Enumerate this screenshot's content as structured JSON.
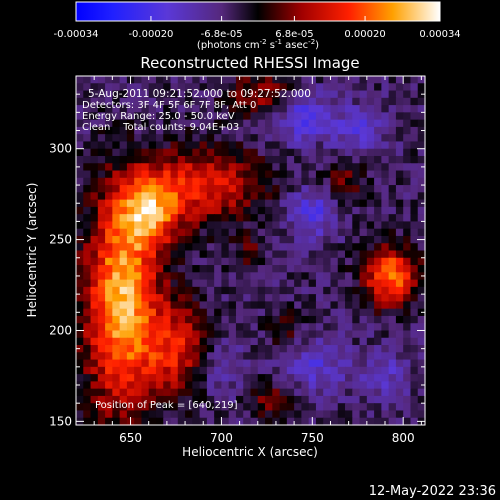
{
  "colorbar": {
    "tick_labels": [
      "-0.00034",
      "-0.00020",
      "-6.8e-05",
      "6.8e-05",
      "0.00020",
      "0.00034"
    ],
    "tick_values": [
      -0.00034,
      -0.0002,
      -6.8e-05,
      6.8e-05,
      0.0002,
      0.00034
    ],
    "range": [
      -0.00034,
      0.00034
    ],
    "units_prefix": "(photons cm",
    "units_exp1": "-2",
    "units_mid": " s",
    "units_exp2": "-1",
    "units_mid2": " asec",
    "units_exp3": "-2",
    "units_suffix": ")"
  },
  "chart_data": {
    "type": "heatmap",
    "title": "Reconstructed RHESSI Image",
    "xlabel": "Heliocentric X (arcsec)",
    "ylabel": "Heliocentric Y (arcsec)",
    "xlim": [
      620,
      812
    ],
    "ylim": [
      148,
      340
    ],
    "x_ticks": [
      650,
      700,
      750,
      800
    ],
    "y_ticks": [
      150,
      200,
      250,
      300
    ],
    "annotations": {
      "time_range": "5-Aug-2011 09:21:52.000 to 09:27:52.000",
      "detectors": "Detectors: 3F 4F 5F 6F 7F 8F, Att 0",
      "energy_range": "Energy Range: 25.0 - 50.0 keV",
      "clean": "Clean    Total counts: 9.04E+03",
      "peak": "Position of Peak = [640,219]"
    },
    "peak_position": [
      640,
      219
    ],
    "sources": [
      {
        "x": 645,
        "y": 215,
        "amp": 0.00033,
        "sx": 14,
        "sy": 40
      },
      {
        "x": 660,
        "y": 265,
        "amp": 0.00024,
        "sx": 12,
        "sy": 14
      },
      {
        "x": 690,
        "y": 280,
        "amp": 0.0002,
        "sx": 22,
        "sy": 14
      },
      {
        "x": 675,
        "y": 190,
        "amp": 0.00018,
        "sx": 12,
        "sy": 18
      },
      {
        "x": 722,
        "y": 330,
        "amp": 0.00012,
        "sx": 14,
        "sy": 8
      },
      {
        "x": 793,
        "y": 230,
        "amp": 0.00028,
        "sx": 10,
        "sy": 11
      },
      {
        "x": 727,
        "y": 162,
        "amp": 0.0001,
        "sx": 9,
        "sy": 7
      },
      {
        "x": 715,
        "y": 243,
        "amp": 8e-05,
        "sx": 6,
        "sy": 6
      },
      {
        "x": 768,
        "y": 283,
        "amp": 9e-05,
        "sx": 9,
        "sy": 9
      },
      {
        "x": 735,
        "y": 200,
        "amp": 7e-05,
        "sx": 7,
        "sy": 7
      },
      {
        "x": 750,
        "y": 265,
        "amp": -0.00013,
        "sx": 10,
        "sy": 10
      },
      {
        "x": 745,
        "y": 318,
        "amp": -0.00015,
        "sx": 10,
        "sy": 10
      },
      {
        "x": 775,
        "y": 310,
        "amp": -0.00011,
        "sx": 10,
        "sy": 10
      },
      {
        "x": 752,
        "y": 180,
        "amp": -0.00011,
        "sx": 12,
        "sy": 10
      },
      {
        "x": 790,
        "y": 175,
        "amp": -9e-05,
        "sx": 10,
        "sy": 10
      },
      {
        "x": 700,
        "y": 178,
        "amp": -8e-05,
        "sx": 10,
        "sy": 10
      }
    ]
  },
  "timestamp": "12-May-2022 23:36"
}
